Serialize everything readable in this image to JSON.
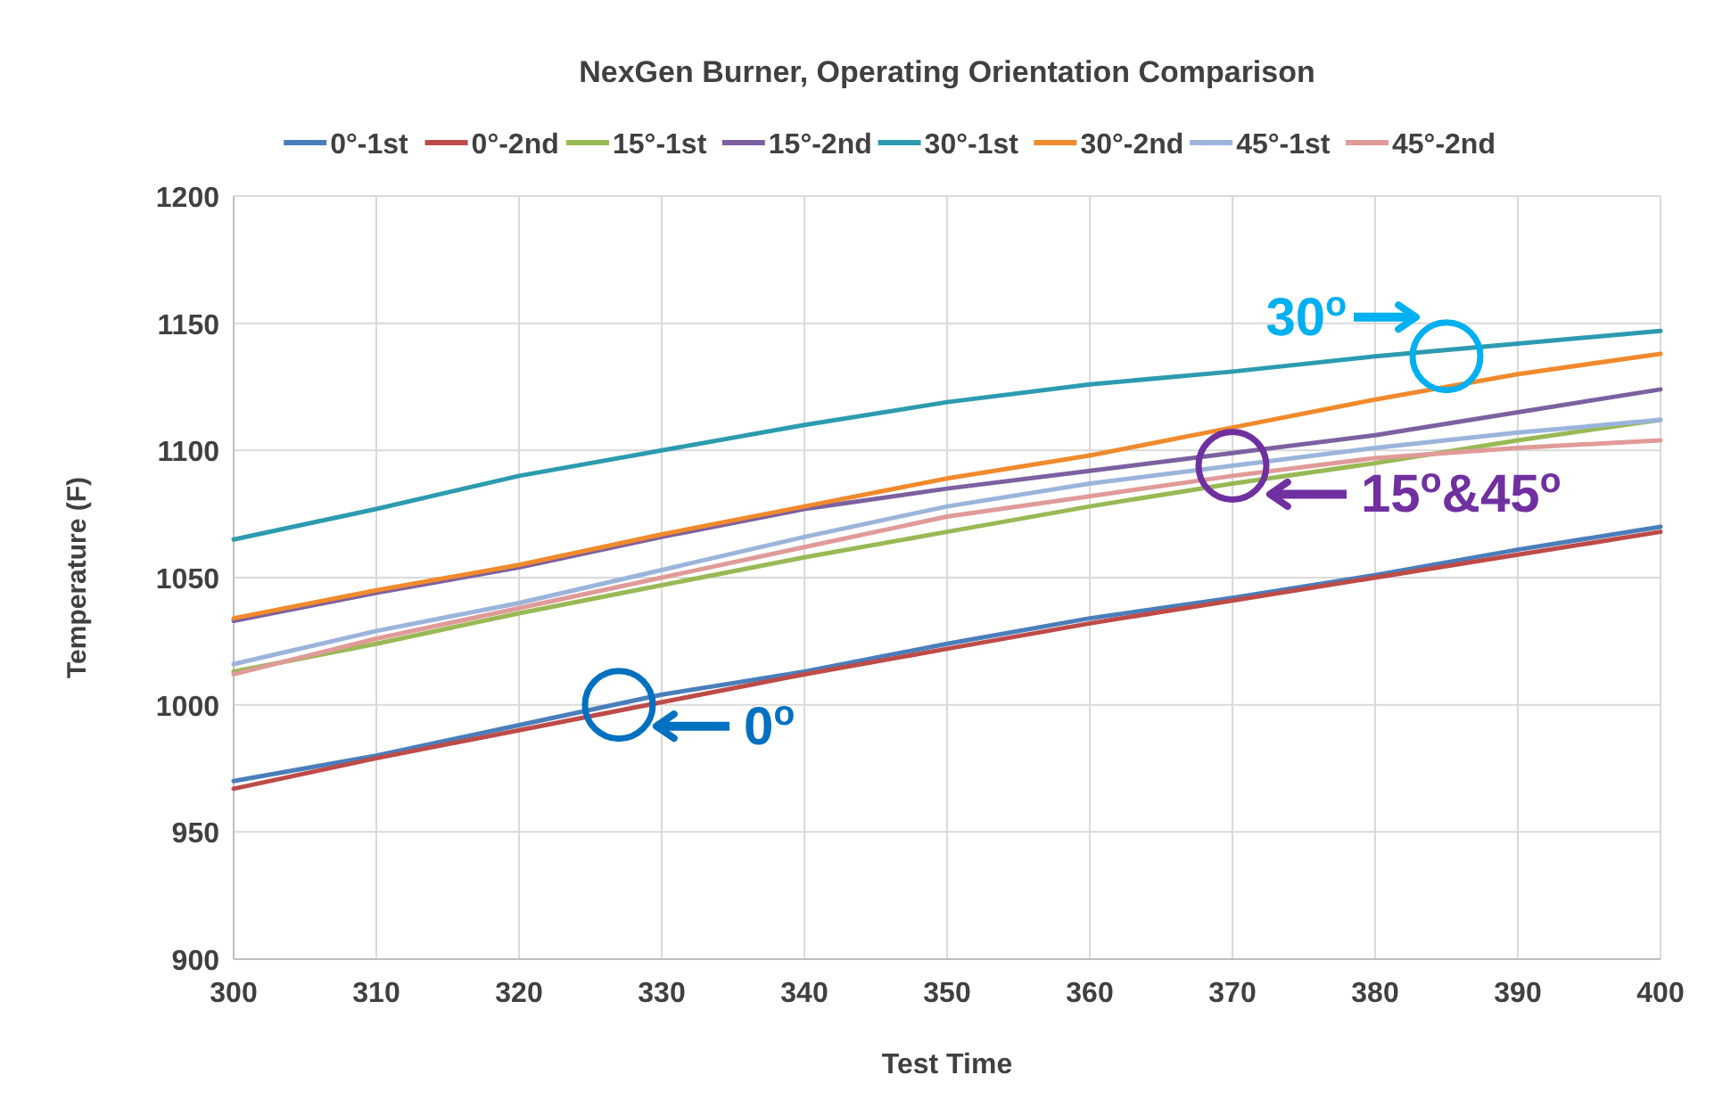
{
  "chart_data": {
    "type": "line",
    "title": "NexGen Burner, Operating Orientation Comparison",
    "xlabel": "Test Time",
    "ylabel": "Temperature (F)",
    "x": [
      300,
      310,
      320,
      330,
      340,
      350,
      360,
      370,
      380,
      390,
      400
    ],
    "series": [
      {
        "name": "0°-1st",
        "color": "#4a7ebb",
        "values": [
          970,
          980,
          992,
          1004,
          1013,
          1024,
          1034,
          1042,
          1051,
          1061,
          1070
        ]
      },
      {
        "name": "0°-2nd",
        "color": "#be4b48",
        "values": [
          967,
          979,
          990,
          1001,
          1012,
          1022,
          1032,
          1041,
          1050,
          1059,
          1068
        ]
      },
      {
        "name": "15°-1st",
        "color": "#98b954",
        "values": [
          1013,
          1024,
          1036,
          1047,
          1058,
          1068,
          1078,
          1087,
          1095,
          1104,
          1112
        ]
      },
      {
        "name": "15°-2nd",
        "color": "#7d60a0",
        "values": [
          1033,
          1044,
          1054,
          1066,
          1077,
          1085,
          1092,
          1099,
          1106,
          1115,
          1124
        ]
      },
      {
        "name": "30°-1st",
        "color": "#2c9bb0",
        "values": [
          1065,
          1077,
          1090,
          1100,
          1110,
          1119,
          1126,
          1131,
          1137,
          1142,
          1147
        ]
      },
      {
        "name": "30°-2nd",
        "color": "#f08a2c",
        "values": [
          1034,
          1045,
          1055,
          1067,
          1078,
          1089,
          1098,
          1109,
          1120,
          1130,
          1138
        ]
      },
      {
        "name": "45°-1st",
        "color": "#9bb4dc",
        "values": [
          1016,
          1029,
          1040,
          1053,
          1066,
          1078,
          1087,
          1094,
          1101,
          1107,
          1112
        ]
      },
      {
        "name": "45°-2nd",
        "color": "#e09a98",
        "values": [
          1012,
          1026,
          1038,
          1050,
          1062,
          1074,
          1082,
          1090,
          1097,
          1101,
          1104
        ]
      }
    ],
    "xlim": [
      300,
      400
    ],
    "xticks": [
      300,
      310,
      320,
      330,
      340,
      350,
      360,
      370,
      380,
      390,
      400
    ],
    "ylim": [
      900,
      1200
    ],
    "yticks": [
      900,
      950,
      1000,
      1050,
      1100,
      1150,
      1200
    ],
    "grid": true,
    "legend": "top",
    "marker": "none",
    "line_style": "solid",
    "annotations": [
      {
        "text": "30$^{o}$",
        "x": 385,
        "y": 1137
      },
      {
        "text": "15$^{o}$&45$^{o}$",
        "x": 370,
        "y": 1094
      },
      {
        "text": "0$^{o}$",
        "x": 327,
        "y": 1000
      }
    ]
  }
}
